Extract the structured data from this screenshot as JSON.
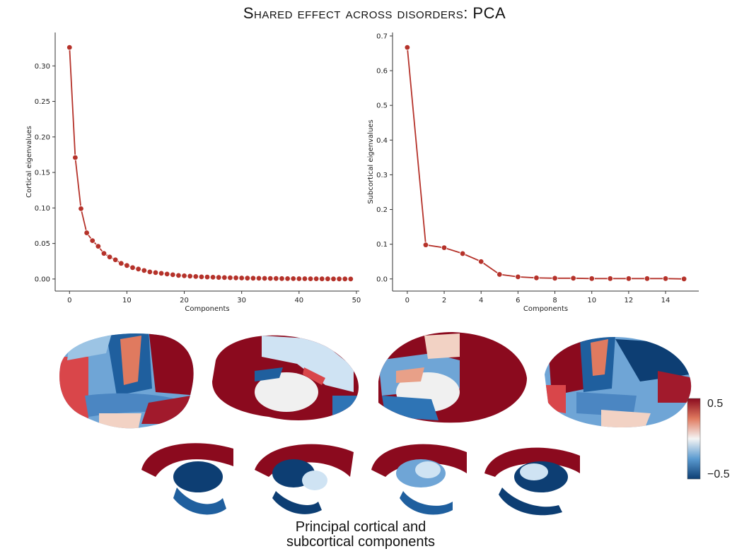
{
  "title": "Shared effect across disorders: PCA",
  "chart_data": [
    {
      "type": "line",
      "ylabel": "Cortical eigenvalues",
      "xlabel": "Components",
      "xlim": [
        -2.5,
        50.5
      ],
      "ylim": [
        -0.017,
        0.347
      ],
      "xticks": [
        0,
        10,
        20,
        30,
        40,
        50
      ],
      "yticks": [
        0.0,
        0.05,
        0.1,
        0.15,
        0.2,
        0.25,
        0.3
      ],
      "ytick_labels": [
        "0.00",
        "0.05",
        "0.10",
        "0.15",
        "0.20",
        "0.25",
        "0.30"
      ],
      "x": [
        0,
        1,
        2,
        3,
        4,
        5,
        6,
        7,
        8,
        9,
        10,
        11,
        12,
        13,
        14,
        15,
        16,
        17,
        18,
        19,
        20,
        21,
        22,
        23,
        24,
        25,
        26,
        27,
        28,
        29,
        30,
        31,
        32,
        33,
        34,
        35,
        36,
        37,
        38,
        39,
        40,
        41,
        42,
        43,
        44,
        45,
        46,
        47,
        48,
        49
      ],
      "y": [
        0.326,
        0.171,
        0.099,
        0.065,
        0.054,
        0.046,
        0.036,
        0.031,
        0.027,
        0.022,
        0.019,
        0.016,
        0.014,
        0.012,
        0.01,
        0.009,
        0.008,
        0.007,
        0.006,
        0.005,
        0.0045,
        0.004,
        0.0035,
        0.003,
        0.0028,
        0.0025,
        0.0022,
        0.002,
        0.0018,
        0.0016,
        0.0014,
        0.0012,
        0.0011,
        0.001,
        0.0009,
        0.0008,
        0.0007,
        0.0006,
        0.0005,
        0.0005,
        0.0004,
        0.0004,
        0.0003,
        0.0003,
        0.0002,
        0.0002,
        0.0001,
        0.0001,
        0.0001,
        0.0
      ]
    },
    {
      "type": "line",
      "ylabel": "Subcortical eigenvalues",
      "xlabel": "Components",
      "xlim": [
        -0.8,
        15.8
      ],
      "ylim": [
        -0.035,
        0.71
      ],
      "xticks": [
        0,
        2,
        4,
        6,
        8,
        10,
        12,
        14
      ],
      "yticks": [
        0.0,
        0.1,
        0.2,
        0.3,
        0.4,
        0.5,
        0.6,
        0.7
      ],
      "ytick_labels": [
        "0.0",
        "0.1",
        "0.2",
        "0.3",
        "0.4",
        "0.5",
        "0.6",
        "0.7"
      ],
      "x": [
        0,
        1,
        2,
        3,
        4,
        5,
        6,
        7,
        8,
        9,
        10,
        11,
        12,
        13,
        14,
        15
      ],
      "y": [
        0.667,
        0.098,
        0.09,
        0.073,
        0.05,
        0.013,
        0.006,
        0.003,
        0.002,
        0.002,
        0.001,
        0.001,
        0.001,
        0.001,
        0.001,
        0.0
      ]
    }
  ],
  "colorbar": {
    "max_label": "0.5",
    "min_label": "−0.5",
    "high_color": "#8b0a1e",
    "mid_color": "#f4f4f4",
    "low_color": "#0d3e73"
  },
  "caption": {
    "line1": "Principal cortical and",
    "line2": "subcortical  components"
  },
  "colors": {
    "line": "#b5322a",
    "marker": "#b5322a"
  }
}
